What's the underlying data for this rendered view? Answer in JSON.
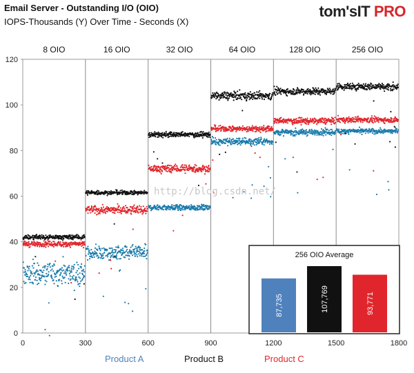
{
  "header": {
    "title": "Email Server - Outstanding I/O (OIO)",
    "subtitle": "IOPS-Thousands (Y) Over Time - Seconds (X)",
    "brand_main": "tom's",
    "brand_it": "IT",
    "brand_pro": "PRO"
  },
  "watermark": "http://blog.csdn.net/",
  "chart_data": [
    {
      "type": "scatter",
      "title": "Email Server - Outstanding I/O (OIO)",
      "subtitle": "IOPS-Thousands (Y) Over Time - Seconds (X)",
      "xlabel": "",
      "ylabel": "",
      "xlim": [
        0,
        1800
      ],
      "ylim": [
        0,
        120
      ],
      "x_ticks": [
        0,
        300,
        600,
        900,
        1200,
        1500,
        1800
      ],
      "y_ticks": [
        0,
        20,
        40,
        60,
        80,
        100,
        120
      ],
      "grid": "vertical",
      "segment_labels": [
        "8 OIO",
        "16 OIO",
        "32  OIO",
        "64 OIO",
        "128 OIO",
        "256 OIO"
      ],
      "segments_x": [
        [
          0,
          300
        ],
        [
          300,
          600
        ],
        [
          600,
          900
        ],
        [
          900,
          1200
        ],
        [
          1200,
          1500
        ],
        [
          1500,
          1800
        ]
      ],
      "legend_position": "bottom",
      "series": [
        {
          "name": "Product  A",
          "color": "#1a7bab",
          "segment_means": [
            26,
            35,
            55,
            84,
            88,
            88.5
          ]
        },
        {
          "name": "Product  B",
          "color": "#111111",
          "segment_means": [
            42,
            61.5,
            87,
            104,
            106,
            108
          ]
        },
        {
          "name": "Product  C",
          "color": "#e0262c",
          "segment_means": [
            39,
            54,
            72,
            89.5,
            93,
            93.5
          ]
        }
      ]
    },
    {
      "type": "bar",
      "title": "256 OIO Average",
      "categories": [
        "Product  A",
        "Product  B",
        "Product  C"
      ],
      "values": [
        87.735,
        107.769,
        93.771
      ],
      "value_labels": [
        "87,735",
        "107,769",
        "93,771"
      ],
      "colors": [
        "#4f81bd",
        "#111111",
        "#e0262c"
      ],
      "legend_position": "none"
    }
  ],
  "legend": [
    {
      "label": "Product  A",
      "color": "#4f81bd"
    },
    {
      "label": "Product  B",
      "color": "#111111"
    },
    {
      "label": "Product  C",
      "color": "#e0262c"
    }
  ]
}
